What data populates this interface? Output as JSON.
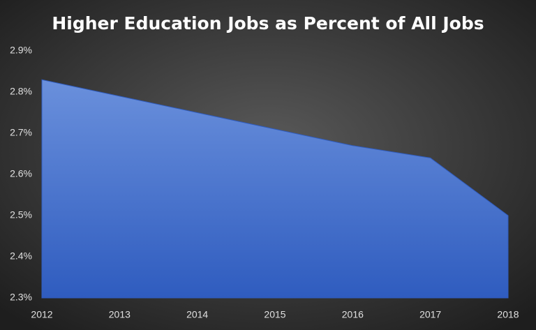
{
  "chart_data": {
    "type": "area",
    "title": "Higher Education Jobs as Percent of All Jobs",
    "categories": [
      "2012",
      "2013",
      "2014",
      "2015",
      "2016",
      "2017",
      "2018"
    ],
    "values": [
      2.83,
      2.79,
      2.75,
      2.71,
      2.67,
      2.64,
      2.5
    ],
    "color": "#4a74d0",
    "ylim": [
      2.3,
      2.9
    ],
    "yticks": [
      {
        "value": 2.3,
        "label": "2.3%"
      },
      {
        "value": 2.4,
        "label": "2.4%"
      },
      {
        "value": 2.5,
        "label": "2.5%"
      },
      {
        "value": 2.6,
        "label": "2.6%"
      },
      {
        "value": 2.7,
        "label": "2.7%"
      },
      {
        "value": 2.8,
        "label": "2.8%"
      },
      {
        "value": 2.9,
        "label": "2.9%"
      }
    ],
    "grid": false
  }
}
